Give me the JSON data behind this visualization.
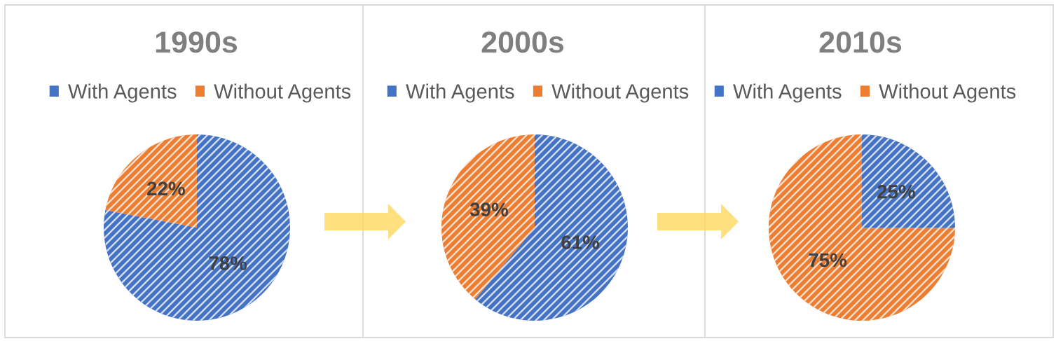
{
  "chart_data": [
    {
      "type": "pie",
      "title": "1990s",
      "categories": [
        "With Agents",
        "Without Agents"
      ],
      "values": [
        78,
        22
      ],
      "colors": [
        "#4472c4",
        "#ed7d31"
      ],
      "value_labels": [
        "78%",
        "22%"
      ],
      "legend": "top"
    },
    {
      "type": "pie",
      "title": "2000s",
      "categories": [
        "With Agents",
        "Without Agents"
      ],
      "values": [
        61,
        39
      ],
      "colors": [
        "#4472c4",
        "#ed7d31"
      ],
      "value_labels": [
        "61%",
        "39%"
      ],
      "legend": "top"
    },
    {
      "type": "pie",
      "title": "2010s",
      "categories": [
        "With Agents",
        "Without Agents"
      ],
      "values": [
        25,
        75
      ],
      "colors": [
        "#4472c4",
        "#ed7d31"
      ],
      "value_labels": [
        "25%",
        "75%"
      ],
      "legend": "top"
    }
  ]
}
